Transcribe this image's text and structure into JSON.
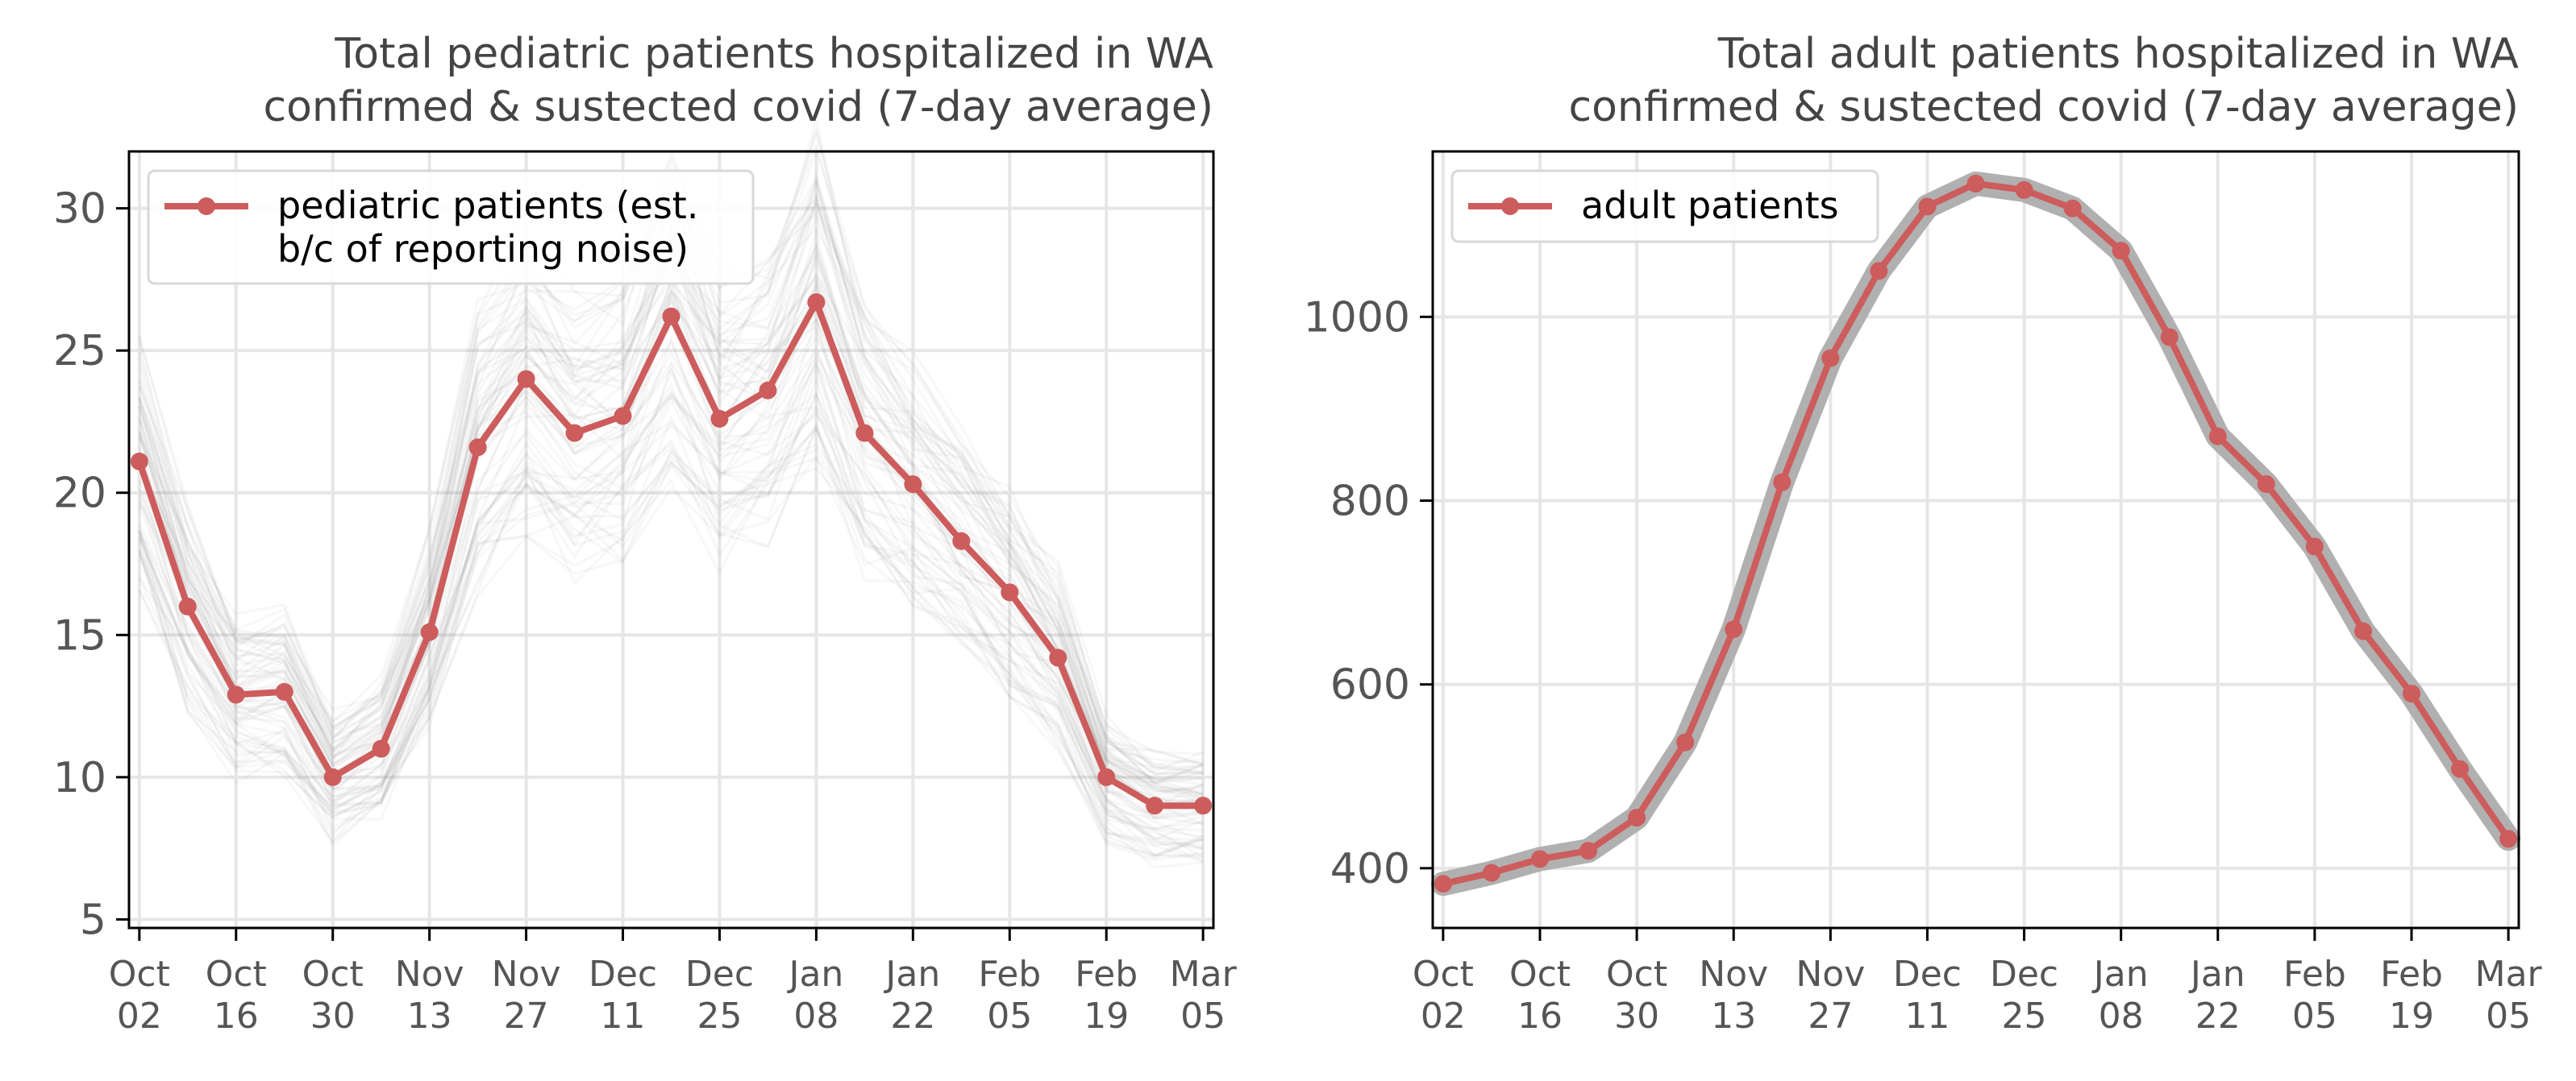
{
  "chart_data": [
    {
      "type": "line",
      "title": "Total pediatric patients hospitalized in WA\nconfirmed & sustected covid (7-day average)",
      "xlabel": "",
      "ylabel": "",
      "x_ticks": [
        "Oct\n02",
        "Oct\n16",
        "Oct\n30",
        "Nov\n13",
        "Nov\n27",
        "Dec\n11",
        "Dec\n25",
        "Jan\n08",
        "Jan\n22",
        "Feb\n05",
        "Feb\n19",
        "Mar\n05"
      ],
      "x_days": [
        0,
        7,
        14,
        21,
        28,
        35,
        42,
        49,
        56,
        63,
        70,
        77,
        84,
        91,
        98,
        105,
        112,
        119,
        126,
        133,
        140,
        147,
        154
      ],
      "ylim": [
        4.7,
        32
      ],
      "y_ticks": [
        5,
        10,
        15,
        20,
        25,
        30
      ],
      "grid": true,
      "legend_position": "top-left",
      "series": [
        {
          "name": "pediatric patients (est.\nb/c of reporting noise)",
          "color": "#cd5c5c",
          "values": [
            21.1,
            16.0,
            12.9,
            13.0,
            10.0,
            11.0,
            15.1,
            21.6,
            24.0,
            22.1,
            22.7,
            26.2,
            22.6,
            23.6,
            26.7,
            22.1,
            20.3,
            18.3,
            16.5,
            14.2,
            10.0,
            9.0,
            9.0
          ],
          "band": "ensemble"
        }
      ]
    },
    {
      "type": "line",
      "title": "Total adult patients hospitalized in WA\nconfirmed & sustected covid (7-day average)",
      "xlabel": "",
      "ylabel": "",
      "x_ticks": [
        "Oct\n02",
        "Oct\n16",
        "Oct\n30",
        "Nov\n13",
        "Nov\n27",
        "Dec\n11",
        "Dec\n25",
        "Jan\n08",
        "Jan\n22",
        "Feb\n05",
        "Feb\n19",
        "Mar\n05"
      ],
      "x_days": [
        0,
        7,
        14,
        21,
        28,
        35,
        42,
        49,
        56,
        63,
        70,
        77,
        84,
        91,
        98,
        105,
        112,
        119,
        126,
        133,
        140,
        147,
        154
      ],
      "ylim": [
        335,
        1180
      ],
      "y_ticks": [
        400,
        600,
        800,
        1000
      ],
      "grid": true,
      "legend_position": "top-left",
      "series": [
        {
          "name": "adult patients",
          "color": "#cd5c5c",
          "values": [
            383,
            395,
            410,
            419,
            455,
            537,
            660,
            820,
            955,
            1050,
            1120,
            1145,
            1138,
            1118,
            1072,
            978,
            870,
            818,
            750,
            658,
            590,
            508,
            432
          ],
          "band": "uncertainty"
        }
      ]
    }
  ]
}
